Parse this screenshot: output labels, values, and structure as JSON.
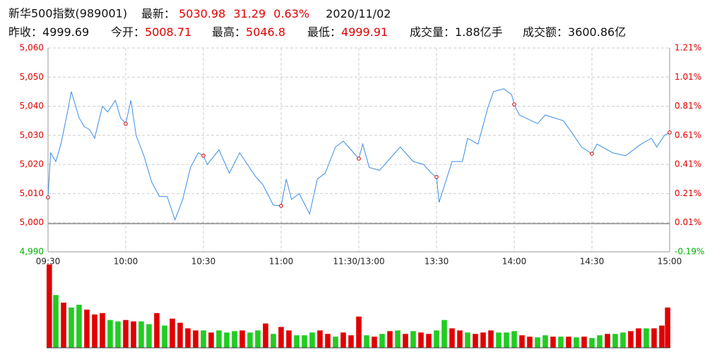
{
  "header": {
    "title": "新华500指数(989001)",
    "latest": {
      "label": "最新：",
      "price": 5030.98,
      "change": 31.29,
      "pct": "0.63%"
    },
    "date": "2020/11/02",
    "stats": [
      {
        "label": "昨收：",
        "value": 4999.69
      },
      {
        "label": "今开：",
        "value": 5008.71
      },
      {
        "label": "最高：",
        "value": 5046.8
      },
      {
        "label": "最低：",
        "value": 4999.91
      },
      {
        "label": "成交量：",
        "value": "1.88亿手"
      },
      {
        "label": "成交额：",
        "value": "3600.86亿"
      }
    ]
  },
  "chart_data": [
    {
      "type": "line",
      "up_color": "#e00000",
      "down_color": "#00b000",
      "grid": true,
      "series": [
        {
          "color": "#3a8ee6",
          "x": [
            0,
            1,
            3,
            5,
            7.5,
            9,
            12,
            14,
            16,
            18,
            21,
            23,
            26,
            28,
            30,
            32,
            34,
            37,
            40,
            43,
            46,
            49,
            52,
            55,
            58,
            60,
            61.5,
            66,
            70,
            74,
            77,
            80,
            83,
            87,
            90,
            92,
            94,
            97,
            101,
            104,
            107,
            111,
            114,
            117,
            120,
            121.5,
            124,
            128,
            131,
            136,
            141,
            145,
            148,
            150,
            151,
            156,
            160,
            162,
            166,
            170,
            172,
            176,
            179,
            180,
            182,
            189,
            192,
            199,
            203,
            206,
            210,
            212,
            218,
            223,
            229,
            233,
            235,
            238,
            240
          ],
          "values": [
            5008.7,
            5024,
            5021,
            5027,
            5038,
            5045,
            5036,
            5033,
            5032,
            5029,
            5040,
            5038,
            5042,
            5036,
            5034,
            5042,
            5030,
            5023,
            5014,
            5009,
            5009,
            5001,
            5008,
            5019,
            5024,
            5023,
            5020,
            5025,
            5017,
            5024,
            5020,
            5016,
            5013,
            5006,
            5005.8,
            5015,
            5008,
            5010,
            5003,
            5015,
            5017,
            5026,
            5028,
            5025,
            5022,
            5027,
            5019,
            5018,
            5021,
            5026,
            5021,
            5020,
            5017,
            5015.7,
            5007,
            5021,
            5021,
            5029,
            5027,
            5040,
            5045,
            5046,
            5044,
            5040.6,
            5037,
            5034,
            5037,
            5035,
            5030,
            5026,
            5023.7,
            5027,
            5024,
            5023,
            5027,
            5029,
            5026,
            5030,
            5030.98
          ]
        }
      ],
      "xlim": [
        0,
        240
      ],
      "xticks": [
        {
          "value": 0,
          "label": "09:30"
        },
        {
          "value": 30,
          "label": "10:00"
        },
        {
          "value": 60,
          "label": "10:30"
        },
        {
          "value": 90,
          "label": "11:00"
        },
        {
          "value": 120,
          "label": "11:30/13:00"
        },
        {
          "value": 150,
          "label": "13:30"
        },
        {
          "value": 180,
          "label": "14:00"
        },
        {
          "value": 210,
          "label": "14:30"
        },
        {
          "value": 240,
          "label": "15:00"
        }
      ],
      "ylim": [
        4990,
        5060
      ],
      "yticks": [
        {
          "value": 5060,
          "label": "5,060"
        },
        {
          "value": 5050,
          "label": "5,050"
        },
        {
          "value": 5040,
          "label": "5,040"
        },
        {
          "value": 5030,
          "label": "5,030"
        },
        {
          "value": 5020,
          "label": "5,020"
        },
        {
          "value": 5010,
          "label": "5,010"
        },
        {
          "value": 5000,
          "label": "5,000"
        },
        {
          "value": 4990,
          "label": "4,990"
        }
      ],
      "y2lim": [
        -0.194,
        1.206
      ],
      "y2ticks": [
        {
          "value": 1.206,
          "label": "1.21%"
        },
        {
          "value": 1.006,
          "label": "1.01%"
        },
        {
          "value": 0.806,
          "label": "0.81%"
        },
        {
          "value": 0.606,
          "label": "0.61%"
        },
        {
          "value": 0.406,
          "label": "0.41%"
        },
        {
          "value": 0.206,
          "label": "0.21%"
        },
        {
          "value": 0.006,
          "label": "0.01%"
        },
        {
          "value": -0.194,
          "label": "-0.19%"
        }
      ]
    },
    {
      "type": "bar",
      "xlim": [
        0,
        240
      ],
      "ylim": [
        0,
        125
      ],
      "series": [
        {
          "color": "#e00000",
          "x": [
            0,
            6,
            15,
            18,
            21,
            30,
            33,
            42,
            48,
            51,
            54,
            57,
            63,
            75,
            84,
            90,
            93,
            105,
            108,
            114,
            117,
            120,
            126,
            132,
            138,
            144,
            147,
            156,
            159,
            165,
            168,
            171,
            183,
            186,
            195,
            201,
            207,
            216,
            225,
            228,
            234,
            237,
            240
          ],
          "values": [
            120,
            65,
            55,
            48,
            50,
            40,
            38,
            50,
            42,
            36,
            28,
            25,
            22,
            25,
            35,
            30,
            25,
            25,
            20,
            22,
            18,
            45,
            16,
            24,
            20,
            22,
            20,
            28,
            25,
            20,
            22,
            25,
            18,
            16,
            16,
            16,
            16,
            20,
            24,
            28,
            28,
            32,
            58
          ]
        },
        {
          "color": "#22cc22",
          "x": [
            3,
            9,
            12,
            24,
            27,
            36,
            39,
            45,
            60,
            66,
            69,
            72,
            78,
            81,
            87,
            96,
            99,
            102,
            111,
            123,
            129,
            135,
            141,
            150,
            153,
            162,
            174,
            177,
            180,
            189,
            192,
            198,
            204,
            210,
            213,
            219,
            222,
            231
          ],
          "values": [
            76,
            58,
            62,
            40,
            38,
            38,
            34,
            32,
            25,
            25,
            22,
            24,
            22,
            25,
            20,
            18,
            18,
            22,
            16,
            18,
            20,
            25,
            24,
            25,
            40,
            22,
            22,
            22,
            24,
            15,
            18,
            16,
            15,
            14,
            18,
            20,
            22,
            28
          ]
        }
      ]
    }
  ]
}
